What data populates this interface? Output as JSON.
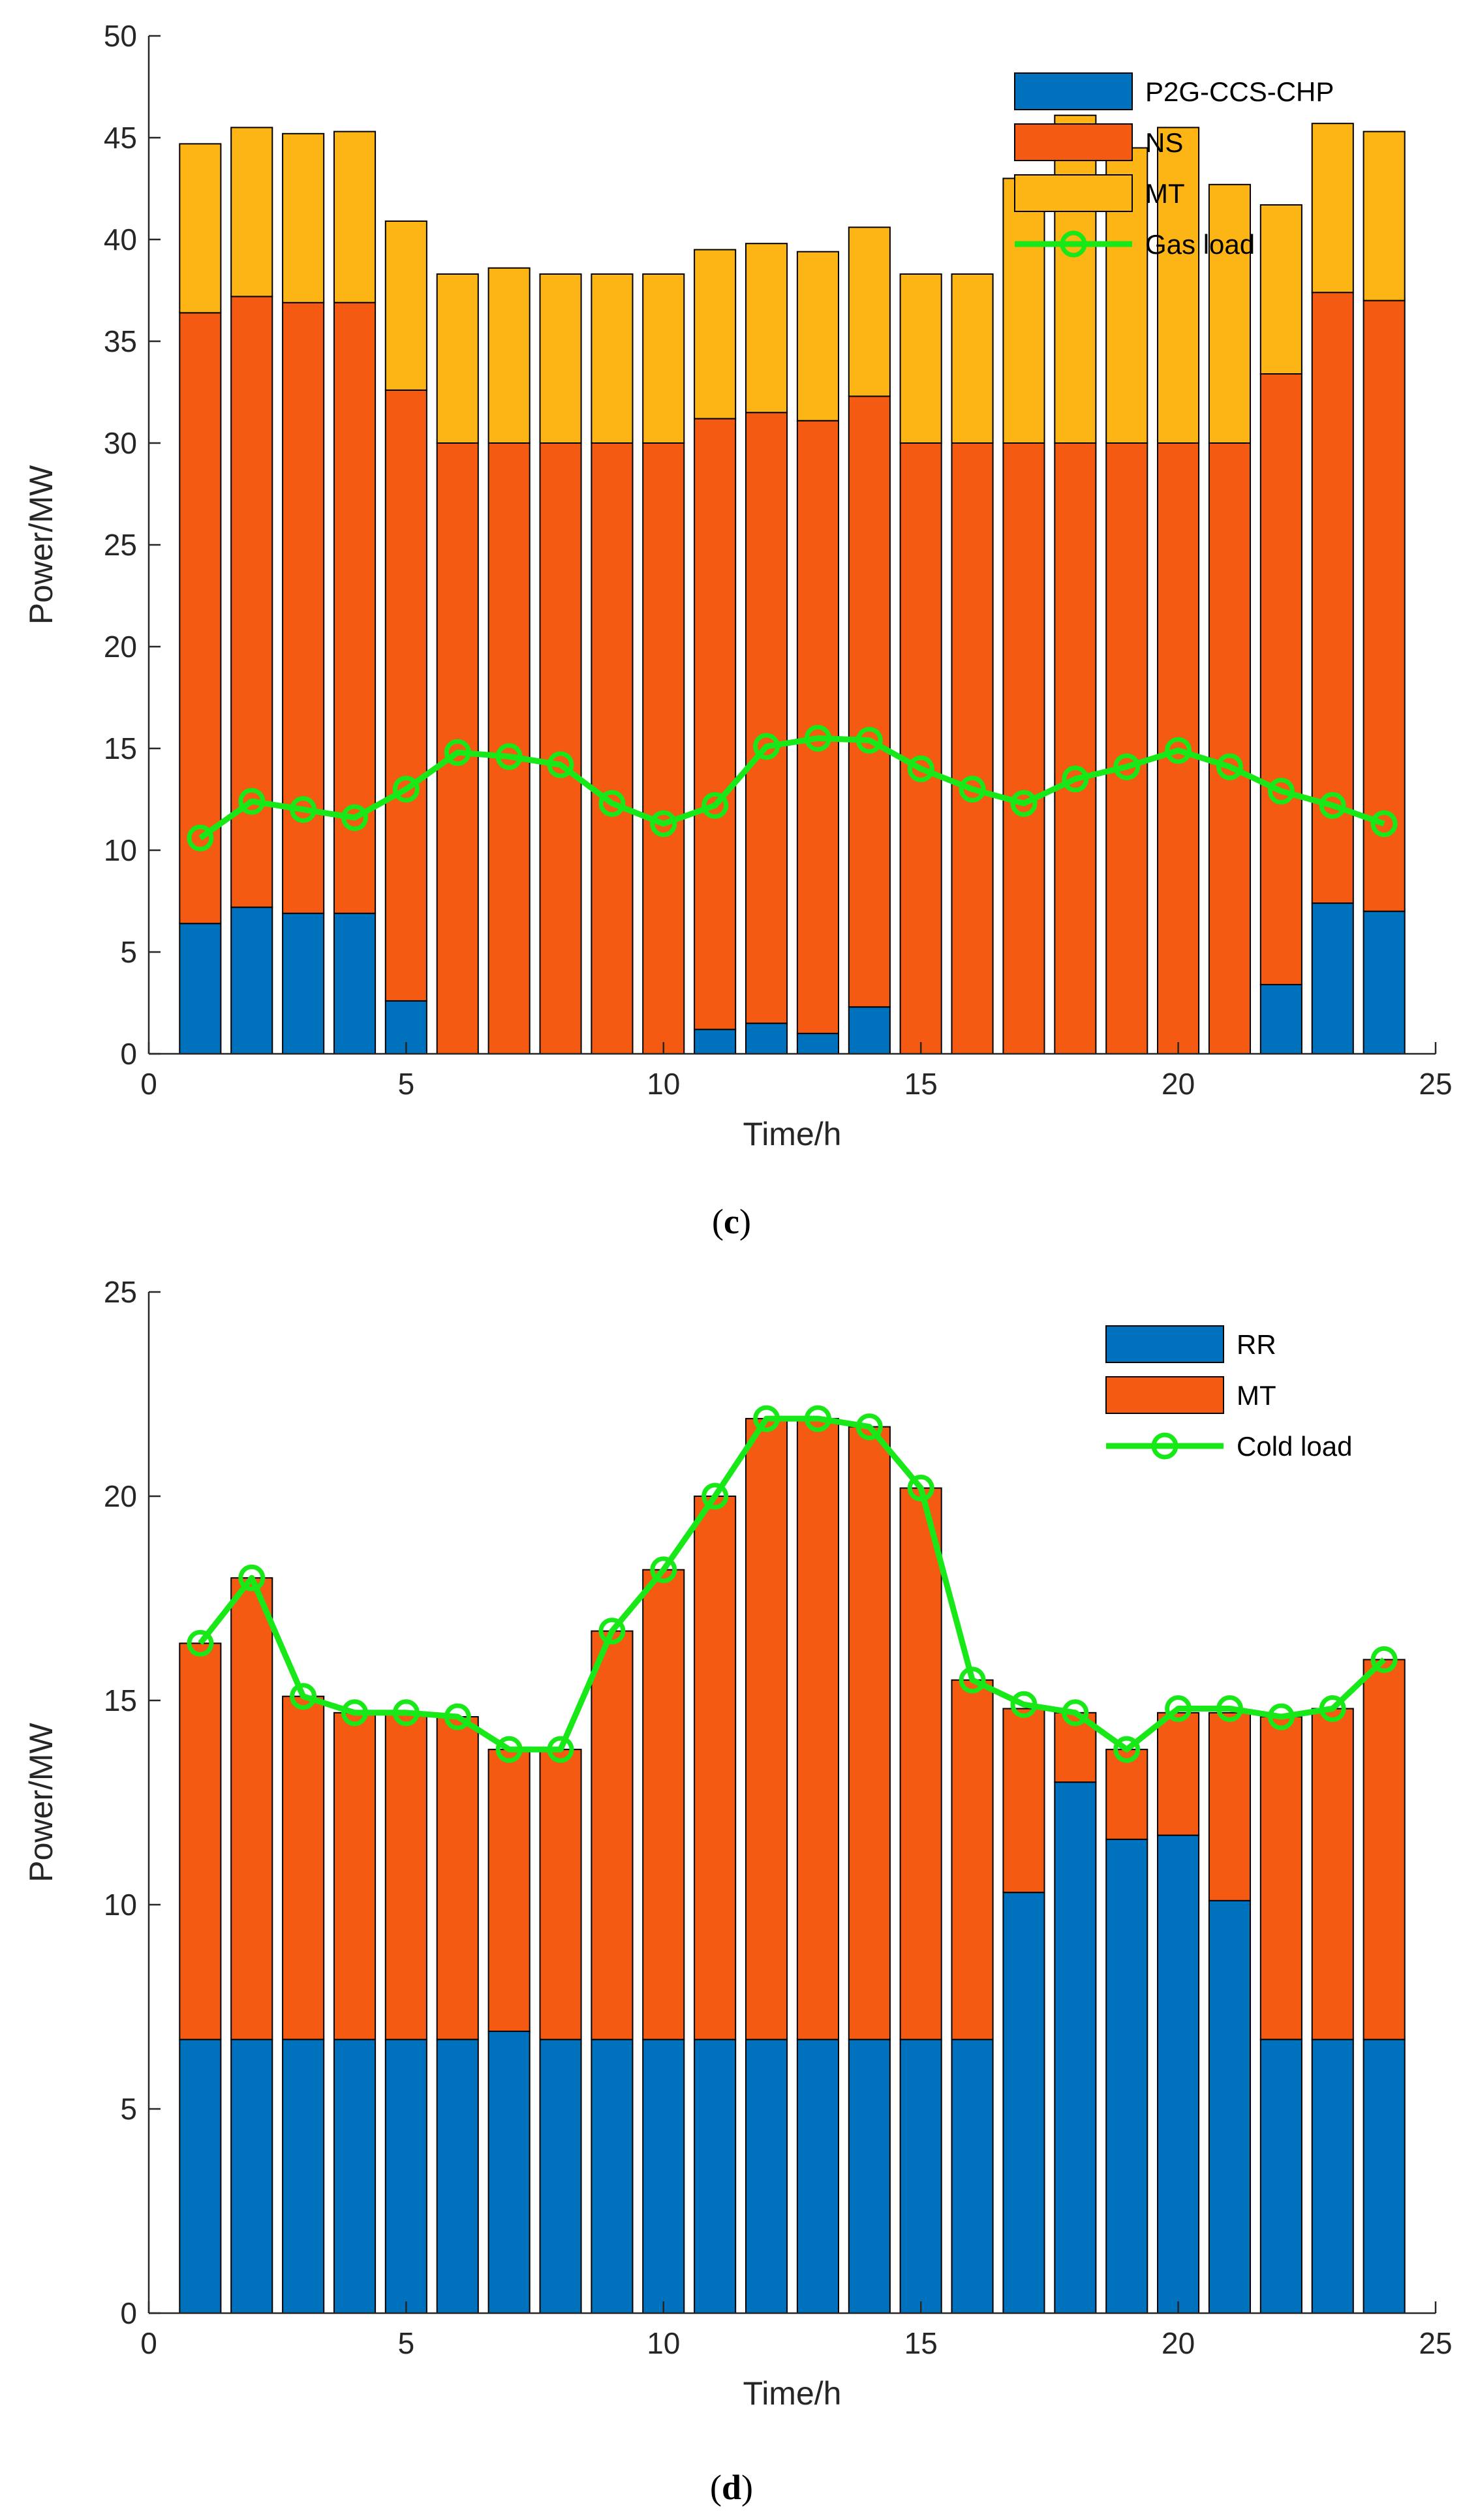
{
  "colors": {
    "blue": "#0072BD",
    "orange": "#F55A12",
    "yellow": "#FDB515",
    "green": "#18E818",
    "axis": "#262626"
  },
  "chart_data": [
    {
      "id": "c",
      "type": "bar",
      "stacked": true,
      "caption": "c",
      "xlabel": "Time/h",
      "ylabel": "Power/MW",
      "xlim": [
        0,
        25
      ],
      "ylim": [
        0,
        50
      ],
      "xticks": [
        "0",
        "5",
        "10",
        "15",
        "20",
        "25"
      ],
      "yticks": [
        "0",
        "5",
        "10",
        "15",
        "20",
        "25",
        "30",
        "35",
        "40",
        "45",
        "50"
      ],
      "x": [
        1,
        2,
        3,
        4,
        5,
        6,
        7,
        8,
        9,
        10,
        11,
        12,
        13,
        14,
        15,
        16,
        17,
        18,
        19,
        20,
        21,
        22,
        23,
        24
      ],
      "series": [
        {
          "name": "P2G-CCS-CHP",
          "color": "blue",
          "values": [
            6.4,
            7.2,
            6.9,
            6.9,
            2.6,
            0,
            0,
            0,
            0,
            0,
            1.2,
            1.5,
            1.0,
            2.3,
            0,
            0,
            0,
            0,
            0,
            0,
            0,
            3.4,
            7.4,
            7.0
          ]
        },
        {
          "name": "NS",
          "color": "orange",
          "values": [
            30.0,
            30.0,
            30.0,
            30.0,
            30.0,
            30.0,
            30.0,
            30.0,
            30.0,
            30.0,
            30.0,
            30.0,
            30.1,
            30.0,
            30.0,
            30.0,
            30.0,
            30.0,
            30.0,
            30.0,
            30.0,
            30.0,
            30.0,
            30.0
          ]
        },
        {
          "name": "MT",
          "color": "yellow",
          "values": [
            8.3,
            8.3,
            8.3,
            8.4,
            8.3,
            8.3,
            8.6,
            8.3,
            8.3,
            8.3,
            8.3,
            8.3,
            8.3,
            8.3,
            8.3,
            8.3,
            13.0,
            16.1,
            14.5,
            15.5,
            12.7,
            8.3,
            8.3,
            8.3
          ]
        }
      ],
      "line": {
        "name": "Gas load",
        "color": "green",
        "values": [
          10.6,
          12.4,
          12.0,
          11.6,
          13.0,
          14.8,
          14.6,
          14.2,
          12.3,
          11.3,
          12.2,
          15.1,
          15.5,
          15.4,
          14.0,
          13.0,
          12.3,
          13.5,
          14.1,
          14.9,
          14.1,
          12.9,
          12.2,
          11.3
        ]
      },
      "legend_position": "top-right"
    },
    {
      "id": "d",
      "type": "bar",
      "stacked": true,
      "caption": "d",
      "xlabel": "Time/h",
      "ylabel": "Power/MW",
      "xlim": [
        0,
        25
      ],
      "ylim": [
        0,
        25
      ],
      "xticks": [
        "0",
        "5",
        "10",
        "15",
        "20",
        "25"
      ],
      "yticks": [
        "0",
        "5",
        "10",
        "15",
        "20",
        "25"
      ],
      "x": [
        1,
        2,
        3,
        4,
        5,
        6,
        7,
        8,
        9,
        10,
        11,
        12,
        13,
        14,
        15,
        16,
        17,
        18,
        19,
        20,
        21,
        22,
        23,
        24
      ],
      "series": [
        {
          "name": "RR",
          "color": "blue",
          "values": [
            6.7,
            6.7,
            6.7,
            6.7,
            6.7,
            6.7,
            6.9,
            6.7,
            6.7,
            6.7,
            6.7,
            6.7,
            6.7,
            6.7,
            6.7,
            6.7,
            10.3,
            13.0,
            11.6,
            11.7,
            10.1,
            6.7,
            6.7,
            6.7
          ]
        },
        {
          "name": "MT",
          "color": "orange",
          "values": [
            9.7,
            11.3,
            8.4,
            8.0,
            8.0,
            7.9,
            6.9,
            7.1,
            10.0,
            11.5,
            13.3,
            15.2,
            15.2,
            15.0,
            13.5,
            8.8,
            4.5,
            1.7,
            2.2,
            3.0,
            4.6,
            7.9,
            8.1,
            9.3
          ]
        }
      ],
      "line": {
        "name": "Cold load",
        "color": "green",
        "values": [
          16.4,
          18.0,
          15.1,
          14.7,
          14.7,
          14.6,
          13.8,
          13.8,
          16.7,
          18.2,
          20.0,
          21.9,
          21.9,
          21.7,
          20.2,
          15.5,
          14.9,
          14.7,
          13.8,
          14.8,
          14.8,
          14.6,
          14.8,
          16.0
        ]
      },
      "legend_position": "top-right"
    }
  ]
}
